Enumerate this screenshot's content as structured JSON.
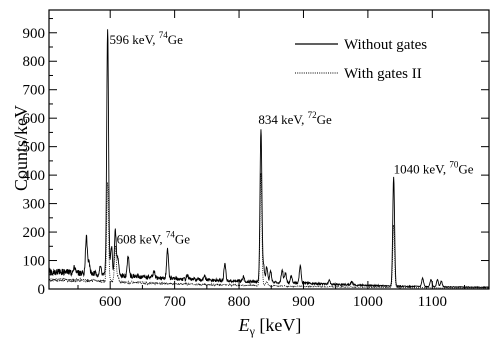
{
  "chart_data": {
    "type": "line",
    "xlabel_main": "E",
    "xlabel_sub": "γ",
    "xlabel_unit": " [keV]",
    "ylabel": "Counts/keV",
    "xlim": [
      505,
      1188
    ],
    "ylim": [
      0,
      980
    ],
    "x_ticks": [
      600,
      700,
      800,
      900,
      1000,
      1100
    ],
    "y_ticks": [
      0,
      100,
      200,
      300,
      400,
      500,
      600,
      700,
      800,
      900
    ],
    "grid": false,
    "legend_position": "top-right",
    "series": [
      {
        "name": "Without gates",
        "style": "solid",
        "baseline": [
          [
            505,
            62
          ],
          [
            540,
            58
          ],
          [
            580,
            53
          ],
          [
            620,
            47
          ],
          [
            680,
            38
          ],
          [
            760,
            30
          ],
          [
            830,
            25
          ],
          [
            880,
            22
          ],
          [
            950,
            16
          ],
          [
            1040,
            10
          ],
          [
            1100,
            8
          ],
          [
            1188,
            6
          ]
        ],
        "peaks": [
          [
            545,
            22
          ],
          [
            563,
            130
          ],
          [
            567,
            40
          ],
          [
            585,
            25
          ],
          [
            596,
            870
          ],
          [
            602,
            100
          ],
          [
            608,
            155
          ],
          [
            612,
            60
          ],
          [
            628,
            70
          ],
          [
            668,
            20
          ],
          [
            689,
            105
          ],
          [
            720,
            15
          ],
          [
            746,
            15
          ],
          [
            778,
            60
          ],
          [
            807,
            15
          ],
          [
            834,
            540
          ],
          [
            838,
            60
          ],
          [
            843,
            55
          ],
          [
            849,
            40
          ],
          [
            867,
            45
          ],
          [
            872,
            35
          ],
          [
            881,
            25
          ],
          [
            895,
            60
          ],
          [
            940,
            15
          ],
          [
            975,
            12
          ],
          [
            1040,
            385
          ],
          [
            1085,
            30
          ],
          [
            1098,
            25
          ],
          [
            1108,
            25
          ],
          [
            1114,
            20
          ]
        ]
      },
      {
        "name": "With gates II",
        "style": "dotted",
        "baseline": [
          [
            505,
            32
          ],
          [
            560,
            30
          ],
          [
            620,
            24
          ],
          [
            700,
            18
          ],
          [
            800,
            13
          ],
          [
            900,
            9
          ],
          [
            1000,
            6
          ],
          [
            1100,
            4
          ],
          [
            1188,
            3
          ]
        ],
        "peaks": [
          [
            596,
            345
          ],
          [
            608,
            125
          ],
          [
            612,
            20
          ],
          [
            834,
            395
          ],
          [
            843,
            15
          ],
          [
            1040,
            220
          ]
        ]
      }
    ],
    "annotations": [
      {
        "energy": "596 keV, ",
        "mass": "74",
        "element": "Ge",
        "x": 599,
        "y": 860
      },
      {
        "energy": "608 keV, ",
        "mass": "74",
        "element": "Ge",
        "x": 610,
        "y": 160
      },
      {
        "energy": "834 keV, ",
        "mass": "72",
        "element": "Ge",
        "x": 830,
        "y": 580
      },
      {
        "energy": "1040 keV, ",
        "mass": "70",
        "element": "Ge",
        "x": 1040,
        "y": 405
      }
    ]
  }
}
